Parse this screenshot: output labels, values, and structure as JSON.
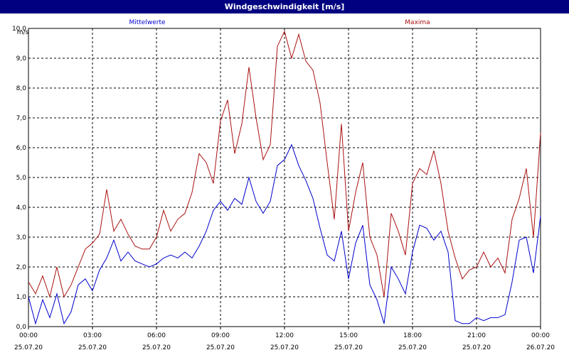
{
  "window_title": "Windgeschwindigkeit [m/s]",
  "colors": {
    "titlebar": "#000080",
    "mean": "#0000cc",
    "max": "#aa1111",
    "grid": "#000000"
  },
  "chart_data": {
    "type": "line",
    "title": "Windgeschwindigkeit [m/s]",
    "ylabel": "m/s",
    "ylim": [
      0,
      10
    ],
    "xlim": [
      "25.07.20 00:00",
      "26.07.20 00:00"
    ],
    "y_ticks": [
      "0,0",
      "1,0",
      "2,0",
      "3,0",
      "4,0",
      "5,0",
      "6,0",
      "7,0",
      "8,0",
      "9,0",
      "10,0"
    ],
    "x_ticks": [
      {
        "time": "00:00",
        "date": "25.07.20"
      },
      {
        "time": "03:00",
        "date": "25.07.20"
      },
      {
        "time": "06:00",
        "date": "25.07.20"
      },
      {
        "time": "09:00",
        "date": "25.07.20"
      },
      {
        "time": "12:00",
        "date": "25.07.20"
      },
      {
        "time": "15:00",
        "date": "25.07.20"
      },
      {
        "time": "18:00",
        "date": "25.07.20"
      },
      {
        "time": "21:00",
        "date": "25.07.20"
      },
      {
        "time": "00:00",
        "date": "26.07.20"
      }
    ],
    "grid": true,
    "legend_position": "top",
    "series": [
      {
        "name": "Mittelwerte",
        "x": [
          "00:00",
          "00:20",
          "00:40",
          "01:00",
          "01:20",
          "01:40",
          "02:00",
          "02:20",
          "02:40",
          "03:00",
          "03:20",
          "03:40",
          "04:00",
          "04:20",
          "04:40",
          "05:00",
          "05:20",
          "05:40",
          "06:00",
          "06:20",
          "06:40",
          "07:00",
          "07:20",
          "07:40",
          "08:00",
          "08:20",
          "08:40",
          "09:00",
          "09:20",
          "09:40",
          "10:00",
          "10:20",
          "10:40",
          "11:00",
          "11:20",
          "11:40",
          "12:00",
          "12:20",
          "12:40",
          "13:00",
          "13:20",
          "13:40",
          "14:00",
          "14:20",
          "14:40",
          "15:00",
          "15:20",
          "15:40",
          "16:00",
          "16:20",
          "16:40",
          "17:00",
          "17:20",
          "17:40",
          "18:00",
          "18:20",
          "18:40",
          "19:00",
          "19:20",
          "19:40",
          "20:00",
          "20:20",
          "20:40",
          "21:00",
          "21:20",
          "21:40",
          "22:00",
          "22:20",
          "22:40",
          "23:00",
          "23:20",
          "23:40",
          "24:00"
        ],
        "values": [
          1.0,
          0.1,
          0.9,
          0.3,
          1.1,
          0.1,
          0.5,
          1.4,
          1.6,
          1.2,
          1.9,
          2.3,
          2.9,
          2.2,
          2.5,
          2.2,
          2.1,
          2.0,
          2.1,
          2.3,
          2.4,
          2.3,
          2.5,
          2.3,
          2.7,
          3.2,
          3.9,
          4.2,
          3.9,
          4.3,
          4.1,
          5.0,
          4.2,
          3.8,
          4.2,
          5.4,
          5.6,
          6.1,
          5.4,
          4.9,
          4.3,
          3.3,
          2.4,
          2.2,
          3.2,
          1.6,
          2.8,
          3.4,
          1.4,
          0.9,
          0.1,
          2.0,
          1.6,
          1.1,
          2.5,
          3.4,
          3.3,
          2.9,
          3.2,
          2.5,
          0.2,
          0.1,
          0.1,
          0.3,
          0.2,
          0.3,
          0.3,
          0.4,
          1.5,
          2.9,
          3.0,
          1.8,
          3.7
        ]
      },
      {
        "name": "Maxima",
        "x": [
          "00:00",
          "00:20",
          "00:40",
          "01:00",
          "01:20",
          "01:40",
          "02:00",
          "02:20",
          "02:40",
          "03:00",
          "03:20",
          "03:40",
          "04:00",
          "04:20",
          "04:40",
          "05:00",
          "05:20",
          "05:40",
          "06:00",
          "06:20",
          "06:40",
          "07:00",
          "07:20",
          "07:40",
          "08:00",
          "08:20",
          "08:40",
          "09:00",
          "09:20",
          "09:40",
          "10:00",
          "10:20",
          "10:40",
          "11:00",
          "11:20",
          "11:40",
          "12:00",
          "12:20",
          "12:40",
          "13:00",
          "13:20",
          "13:40",
          "14:00",
          "14:20",
          "14:40",
          "15:00",
          "15:20",
          "15:40",
          "16:00",
          "16:20",
          "16:40",
          "17:00",
          "17:20",
          "17:40",
          "18:00",
          "18:20",
          "18:40",
          "19:00",
          "19:20",
          "19:40",
          "20:00",
          "20:20",
          "20:40",
          "21:00",
          "21:20",
          "21:40",
          "22:00",
          "22:20",
          "22:40",
          "23:00",
          "23:20",
          "23:40",
          "24:00"
        ],
        "values": [
          1.5,
          1.1,
          1.7,
          1.0,
          2.0,
          1.0,
          1.4,
          2.0,
          2.6,
          2.8,
          3.1,
          4.6,
          3.2,
          3.6,
          3.1,
          2.7,
          2.6,
          2.6,
          3.0,
          3.9,
          3.2,
          3.6,
          3.8,
          4.5,
          5.8,
          5.5,
          4.8,
          6.9,
          7.6,
          5.8,
          6.8,
          8.7,
          7.0,
          5.6,
          6.1,
          9.4,
          9.9,
          9.0,
          9.8,
          8.9,
          8.6,
          7.5,
          5.5,
          3.6,
          6.8,
          3.2,
          4.5,
          5.5,
          3.0,
          2.4,
          1.0,
          3.8,
          3.2,
          2.4,
          4.8,
          5.3,
          5.1,
          5.9,
          4.8,
          3.2,
          2.3,
          1.6,
          1.9,
          2.0,
          2.5,
          2.0,
          2.3,
          1.8,
          3.6,
          4.3,
          5.3,
          3.0,
          6.5
        ]
      }
    ]
  }
}
